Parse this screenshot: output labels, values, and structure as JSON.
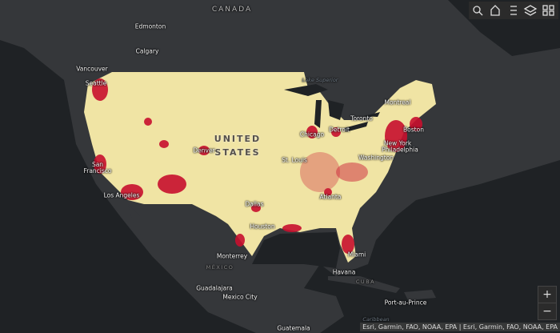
{
  "map": {
    "country_labels": [
      "CANADA",
      "UNITED STATES",
      "MÉXICO",
      "CUBA"
    ],
    "city_labels": [
      "Edmonton",
      "Calgary",
      "Vancouver",
      "Seattle",
      "San Francisco",
      "Los Angeles",
      "Denver",
      "Dallas",
      "Houston",
      "Monterrey",
      "Guadalajara",
      "Mexico City",
      "Havana",
      "Miami",
      "Atlanta",
      "St. Louis",
      "Chicago",
      "Detroit",
      "Toronto",
      "Montreal",
      "Boston",
      "New York",
      "Philadelphia",
      "Washington",
      "Port-au-Prince",
      "Guatemala"
    ],
    "water_labels": [
      "Lake Superior",
      "Caribbean"
    ]
  },
  "controls": {
    "zoom_in": "+",
    "zoom_out": "−"
  },
  "attribution": "Esri, Garmin, FAO, NOAA, EPA | Esri, Garmin, FAO, NOAA, EPA"
}
